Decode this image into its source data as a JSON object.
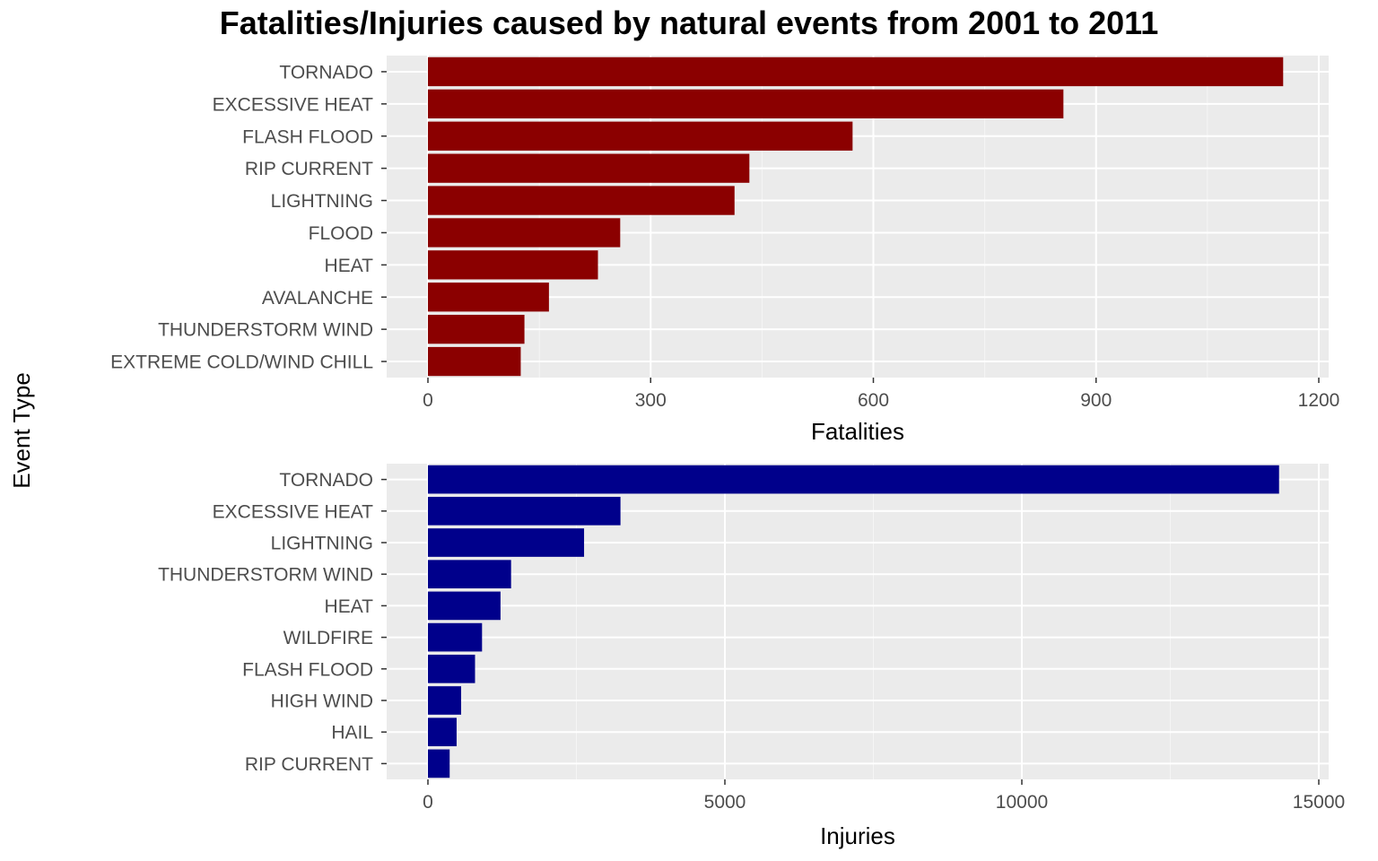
{
  "title": "Fatalities/Injuries caused by natural events from 2001 to 2011",
  "shared_ylabel": "Event Type",
  "chart_data": [
    {
      "type": "bar",
      "orientation": "horizontal",
      "color": "#8B0000",
      "xlabel": "Fatalities",
      "xlim": [
        0,
        1200
      ],
      "xticks": [
        0,
        300,
        600,
        900,
        1200
      ],
      "xtick_labels": [
        "0",
        "300",
        "600",
        "900",
        "1200"
      ],
      "grid": true,
      "categories": [
        "TORNADO",
        "EXCESSIVE HEAT",
        "FLASH FLOOD",
        "RIP CURRENT",
        "LIGHTNING",
        "FLOOD",
        "HEAT",
        "AVALANCHE",
        "THUNDERSTORM WIND",
        "EXTREME COLD/WIND CHILL"
      ],
      "values": [
        1152,
        856,
        572,
        433,
        413,
        259,
        229,
        163,
        130,
        125
      ]
    },
    {
      "type": "bar",
      "orientation": "horizontal",
      "color": "#00008B",
      "xlabel": "Injuries",
      "xlim": [
        0,
        15000
      ],
      "xticks": [
        0,
        5000,
        10000,
        15000
      ],
      "xtick_labels": [
        "0",
        "5000",
        "10000",
        "15000"
      ],
      "grid": true,
      "categories": [
        "TORNADO",
        "EXCESSIVE HEAT",
        "LIGHTNING",
        "THUNDERSTORM WIND",
        "HEAT",
        "WILDFIRE",
        "FLASH FLOOD",
        "HIGH WIND",
        "HAIL",
        "RIP CURRENT"
      ],
      "values": [
        14331,
        3242,
        2629,
        1400,
        1222,
        911,
        793,
        559,
        483,
        366
      ]
    }
  ]
}
